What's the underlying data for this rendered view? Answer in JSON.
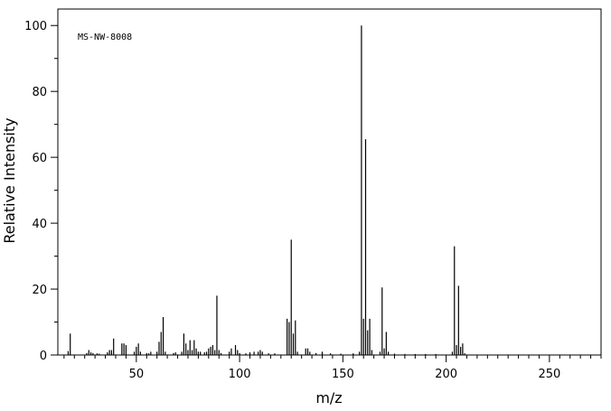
{
  "chart_data": {
    "type": "bar",
    "annotation": "MS-NW-8008",
    "xlabel": "m/z",
    "ylabel": "Relative Intensity",
    "xlim": [
      12,
      275
    ],
    "ylim": [
      0,
      105
    ],
    "xticks_major": [
      50,
      100,
      150,
      200,
      250
    ],
    "yticks_major": [
      0,
      20,
      40,
      60,
      80,
      100
    ],
    "grid": false,
    "peaks": [
      [
        17,
        1.2
      ],
      [
        18,
        6.5
      ],
      [
        26,
        0.6
      ],
      [
        27,
        1.5
      ],
      [
        28,
        0.8
      ],
      [
        29,
        0.6
      ],
      [
        31,
        0.5
      ],
      [
        32,
        0.4
      ],
      [
        36,
        0.8
      ],
      [
        37,
        1.5
      ],
      [
        38,
        1.5
      ],
      [
        39,
        5.0
      ],
      [
        43,
        3.5
      ],
      [
        44,
        3.5
      ],
      [
        45,
        3.0
      ],
      [
        49,
        1.0
      ],
      [
        50,
        2.5
      ],
      [
        51,
        3.5
      ],
      [
        52,
        1.0
      ],
      [
        55,
        0.6
      ],
      [
        56,
        0.5
      ],
      [
        57,
        1.0
      ],
      [
        60,
        1.0
      ],
      [
        61,
        4.0
      ],
      [
        62,
        7.0
      ],
      [
        63,
        11.5
      ],
      [
        64,
        1.0
      ],
      [
        68,
        0.6
      ],
      [
        69,
        0.8
      ],
      [
        72,
        1.0
      ],
      [
        73,
        6.5
      ],
      [
        74,
        3.5
      ],
      [
        75,
        1.5
      ],
      [
        76,
        4.5
      ],
      [
        77,
        1.5
      ],
      [
        78,
        4.5
      ],
      [
        79,
        2.0
      ],
      [
        80,
        1.0
      ],
      [
        81,
        1.0
      ],
      [
        83,
        0.8
      ],
      [
        84,
        1.0
      ],
      [
        85,
        2.0
      ],
      [
        86,
        2.5
      ],
      [
        87,
        3.0
      ],
      [
        88,
        1.5
      ],
      [
        89,
        18.0
      ],
      [
        90,
        1.5
      ],
      [
        91,
        0.6
      ],
      [
        95,
        1.0
      ],
      [
        96,
        2.0
      ],
      [
        98,
        3.0
      ],
      [
        99,
        1.5
      ],
      [
        100,
        0.6
      ],
      [
        103,
        0.5
      ],
      [
        105,
        0.8
      ],
      [
        107,
        1.0
      ],
      [
        109,
        1.0
      ],
      [
        110,
        1.5
      ],
      [
        111,
        1.0
      ],
      [
        114,
        0.5
      ],
      [
        117,
        0.5
      ],
      [
        123,
        11.0
      ],
      [
        124,
        10.0
      ],
      [
        125,
        35.0
      ],
      [
        126,
        6.5
      ],
      [
        127,
        10.5
      ],
      [
        128,
        1.0
      ],
      [
        132,
        2.0
      ],
      [
        133,
        2.0
      ],
      [
        134,
        1.0
      ],
      [
        137,
        0.6
      ],
      [
        140,
        1.0
      ],
      [
        144,
        0.5
      ],
      [
        149,
        0.4
      ],
      [
        155,
        0.5
      ],
      [
        158,
        1.0
      ],
      [
        159,
        100.0
      ],
      [
        160,
        11.0
      ],
      [
        161,
        65.5
      ],
      [
        162,
        7.5
      ],
      [
        163,
        11.0
      ],
      [
        164,
        1.5
      ],
      [
        168,
        1.0
      ],
      [
        169,
        20.5
      ],
      [
        170,
        2.0
      ],
      [
        171,
        7.0
      ],
      [
        172,
        1.0
      ],
      [
        175,
        0.4
      ],
      [
        180,
        0.3
      ],
      [
        185,
        0.3
      ],
      [
        190,
        0.3
      ],
      [
        195,
        0.3
      ],
      [
        203,
        1.0
      ],
      [
        204,
        33.0
      ],
      [
        205,
        3.0
      ],
      [
        206,
        21.0
      ],
      [
        207,
        2.5
      ],
      [
        208,
        3.5
      ],
      [
        209,
        0.5
      ]
    ]
  }
}
